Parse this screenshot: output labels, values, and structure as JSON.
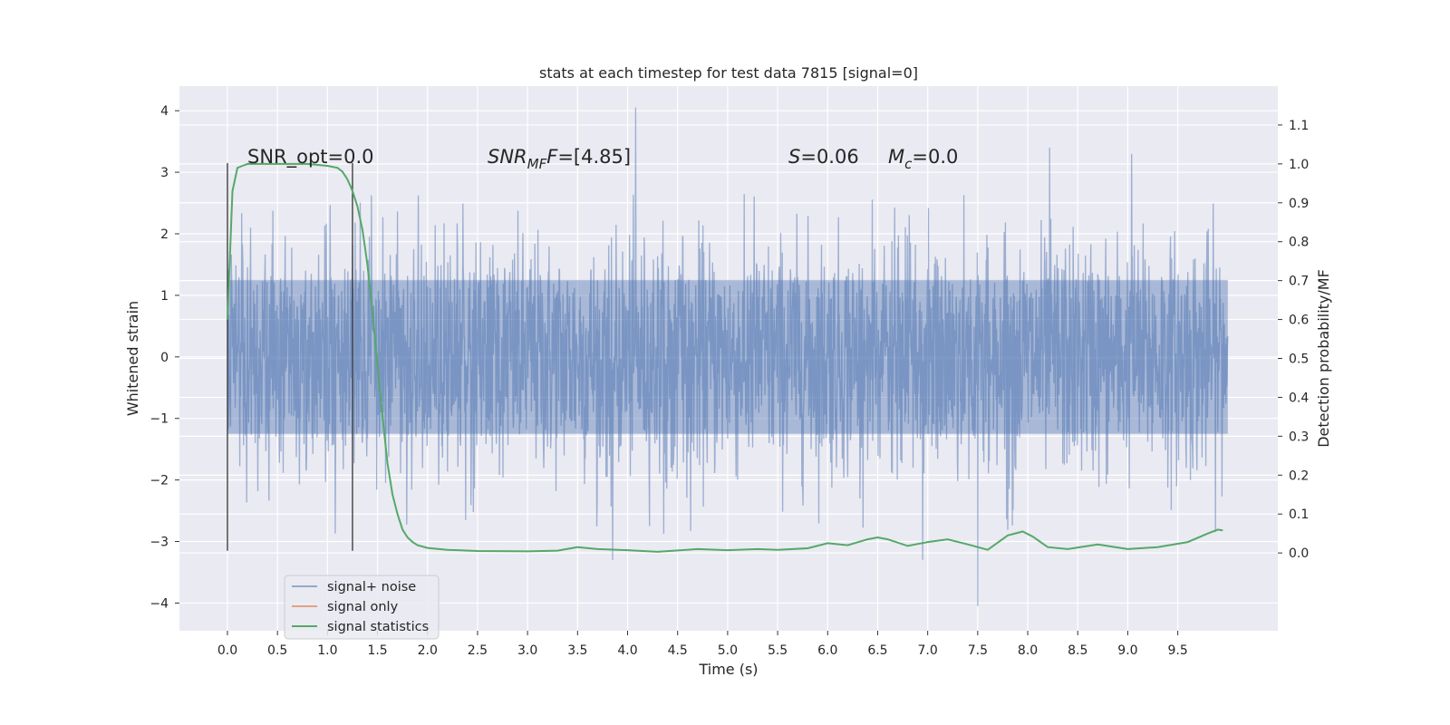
{
  "chart_data": {
    "type": "line",
    "title": "stats at each timestep for test data 7815 [signal=0]",
    "xlabel": "Time (s)",
    "ylabel": "Whitened strain",
    "y2label": "Detection probability/MF",
    "xlim": [
      -0.48,
      10.5
    ],
    "ylim": [
      -4.45,
      4.4
    ],
    "y2lim": [
      -0.2,
      1.2
    ],
    "x_ticks": [
      "0.0",
      "0.5",
      "1.0",
      "1.5",
      "2.0",
      "2.5",
      "3.0",
      "3.5",
      "4.0",
      "4.5",
      "5.0",
      "5.5",
      "6.0",
      "6.5",
      "7.0",
      "7.5",
      "8.0",
      "8.5",
      "9.0",
      "9.5"
    ],
    "y_ticks": [
      "4",
      "3",
      "2",
      "1",
      "0",
      "−1",
      "−2",
      "−3",
      "−4"
    ],
    "y2_ticks": [
      "1.1",
      "1.0",
      "0.9",
      "0.8",
      "0.7",
      "0.6",
      "0.5",
      "0.4",
      "0.3",
      "0.2",
      "0.1",
      "0.0"
    ],
    "grid": true,
    "legend_position": "lower-left",
    "colors": {
      "background": "#eaeaf2",
      "grid": "#ffffff",
      "noise": "#4c72b0",
      "signal": "#dd8452",
      "stats": "#55a868",
      "markers": "#333333"
    },
    "annotations": {
      "snr_opt": "SNR_opt=0.0",
      "snr_mf_main": "SNR",
      "snr_mf_sub": "MF",
      "snr_mf_value": "=[4.85]",
      "s_main": "S",
      "s_value": "=0.06",
      "mc_main": "M",
      "mc_sub": "c",
      "mc_value": "=0.0"
    },
    "vertical_markers": [
      0.0,
      1.25
    ],
    "noise_envelope": {
      "x_start": 0.0,
      "x_end": 10.0,
      "dense_band": [
        -1.25,
        1.25
      ],
      "spike_peaks": [
        {
          "x": 4.08,
          "y": 4.05
        },
        {
          "x": 8.22,
          "y": 3.4
        },
        {
          "x": 9.04,
          "y": 3.3
        },
        {
          "x": 7.5,
          "y": -4.05
        },
        {
          "x": 3.85,
          "y": -3.3
        },
        {
          "x": 6.95,
          "y": -3.3
        }
      ]
    },
    "series": [
      {
        "name": "signal+ noise",
        "color": "#4c72b0",
        "note": "whitened strain noise, 0–10 s"
      },
      {
        "name": "signal only",
        "color": "#dd8452",
        "values": []
      },
      {
        "name": "signal statistics",
        "color": "#55a868",
        "axis": "right",
        "x": [
          0.0,
          0.05,
          0.1,
          0.15,
          0.2,
          0.3,
          0.5,
          0.8,
          1.0,
          1.1,
          1.15,
          1.2,
          1.25,
          1.3,
          1.35,
          1.4,
          1.45,
          1.5,
          1.55,
          1.6,
          1.65,
          1.7,
          1.75,
          1.8,
          1.85,
          1.9,
          2.0,
          2.2,
          2.5,
          3.0,
          3.3,
          3.5,
          3.7,
          4.0,
          4.3,
          4.7,
          5.0,
          5.3,
          5.5,
          5.8,
          6.0,
          6.2,
          6.4,
          6.5,
          6.6,
          6.8,
          7.0,
          7.2,
          7.4,
          7.6,
          7.8,
          7.95,
          8.05,
          8.2,
          8.4,
          8.7,
          9.0,
          9.3,
          9.6,
          9.8,
          9.9,
          9.95
        ],
        "values": [
          0.6,
          0.93,
          0.99,
          0.995,
          1.0,
          1.0,
          1.0,
          1.0,
          0.995,
          0.99,
          0.98,
          0.96,
          0.93,
          0.89,
          0.83,
          0.74,
          0.62,
          0.48,
          0.35,
          0.23,
          0.15,
          0.1,
          0.06,
          0.04,
          0.028,
          0.02,
          0.013,
          0.008,
          0.005,
          0.004,
          0.006,
          0.015,
          0.01,
          0.007,
          0.003,
          0.01,
          0.007,
          0.01,
          0.008,
          0.012,
          0.025,
          0.02,
          0.035,
          0.04,
          0.035,
          0.018,
          0.028,
          0.035,
          0.022,
          0.008,
          0.045,
          0.055,
          0.042,
          0.015,
          0.01,
          0.022,
          0.01,
          0.015,
          0.028,
          0.05,
          0.06,
          0.058
        ]
      }
    ]
  }
}
